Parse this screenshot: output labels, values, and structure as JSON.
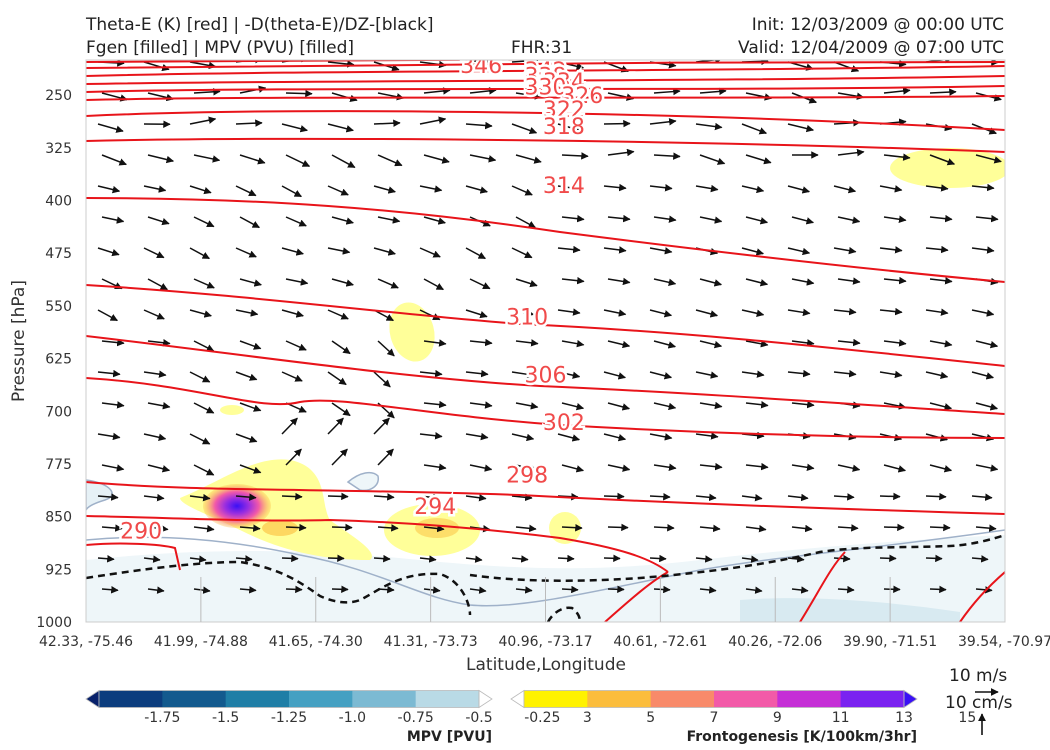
{
  "header": {
    "left_line1": "Theta-E (K) [red] | -D(theta-E)/DZ-[black]",
    "left_line2": "Fgen [filled] | MPV (PVU) [filled]",
    "fhr": "FHR:31",
    "init": "Init: 12/03/2009 @ 00:00 UTC",
    "valid": "Valid: 12/04/2009 @ 07:00 UTC"
  },
  "chart_data": {
    "type": "cross-section",
    "xlabel": "Latitude,Longitude",
    "ylabel": "Pressure [hPa]",
    "ylim": [
      1000,
      200
    ],
    "y_ticks": [
      250,
      325,
      400,
      475,
      550,
      625,
      700,
      775,
      850,
      925,
      1000
    ],
    "x_ticks": [
      "42.33, -75.46",
      "41.99, -74.88",
      "41.65, -74.30",
      "41.31, -73.73",
      "40.96, -73.17",
      "40.61, -72.61",
      "40.26, -72.06",
      "39.90, -71.51",
      "39.54, -70.97"
    ],
    "theta_e_labels": [
      {
        "value": "346",
        "x": 0.43,
        "p": 207
      },
      {
        "value": "342",
        "x": 0.5,
        "p": 214
      },
      {
        "value": "338",
        "x": 0.5,
        "p": 222
      },
      {
        "value": "334",
        "x": 0.52,
        "p": 230
      },
      {
        "value": "330",
        "x": 0.5,
        "p": 238
      },
      {
        "value": "326",
        "x": 0.54,
        "p": 250
      },
      {
        "value": "322",
        "x": 0.52,
        "p": 270
      },
      {
        "value": "318",
        "x": 0.52,
        "p": 294
      },
      {
        "value": "314",
        "x": 0.52,
        "p": 378
      },
      {
        "value": "310",
        "x": 0.48,
        "p": 565
      },
      {
        "value": "306",
        "x": 0.5,
        "p": 648
      },
      {
        "value": "302",
        "x": 0.52,
        "p": 715
      },
      {
        "value": "298",
        "x": 0.48,
        "p": 790
      },
      {
        "value": "294",
        "x": 0.38,
        "p": 835
      },
      {
        "value": "290",
        "x": 0.06,
        "p": 870
      }
    ],
    "wind_scale": {
      "horizontal": "10 m/s",
      "vertical": "10 cm/s"
    },
    "colorbars": [
      {
        "label": "MPV [PVU]",
        "ticks": [
          "-1.75",
          "-1.5",
          "-1.25",
          "-1.0",
          "-0.75",
          "-0.5",
          "-0.25"
        ],
        "colors": [
          "#08216b",
          "#0c3d7e",
          "#135a8e",
          "#1f7ea6",
          "#45a0c2",
          "#7cbad3",
          "#b9dae6",
          "#ffffff"
        ]
      },
      {
        "label": "Frontogenesis [K/100km/3hr]",
        "ticks": [
          "3",
          "5",
          "7",
          "9",
          "11",
          "13",
          "15"
        ],
        "colors": [
          "#ffffff",
          "#fff200",
          "#fbbd3c",
          "#f88a6a",
          "#f25aa8",
          "#c52fd6",
          "#7a22f0",
          "#3a10f5"
        ]
      }
    ]
  }
}
